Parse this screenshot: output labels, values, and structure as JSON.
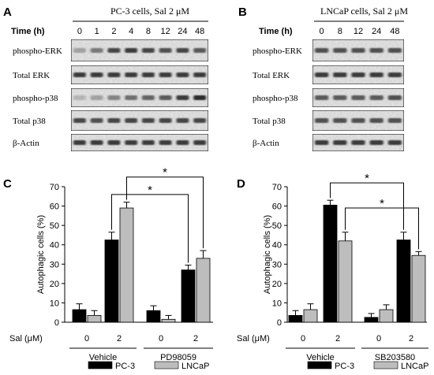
{
  "panels": {
    "A": {
      "letter": "A",
      "header": "PC-3 cells,  Sal 2 μM",
      "time_label": "Time  (h)",
      "times": [
        "0",
        "1",
        "2",
        "4",
        "8",
        "12",
        "24",
        "48"
      ],
      "blots": [
        "phospho-ERK",
        "Total ERK",
        "phospho-p38",
        "Total p38",
        "β-Actin"
      ]
    },
    "B": {
      "letter": "B",
      "header": "LNCaP cells,  Sal 2 μM",
      "time_label": "Time  (h)",
      "times": [
        "0",
        "8",
        "12",
        "24",
        "48"
      ],
      "blots": [
        "phospho-ERK",
        "Total ERK",
        "phospho-p38",
        "Total p38",
        "β-Actin"
      ]
    }
  },
  "chart_data": [
    {
      "type": "bar",
      "panel": "C",
      "ylabel": "Autophagic  cells (%)",
      "xlabel": "Sal (μM)",
      "ylim": [
        0,
        70
      ],
      "yticks": [
        0,
        10,
        20,
        30,
        40,
        50,
        60,
        70
      ],
      "categories": [
        "0",
        "2",
        "0",
        "2"
      ],
      "groups": [
        {
          "label": "Vehicle",
          "categories": [
            0,
            1
          ]
        },
        {
          "label": "PD98059",
          "categories": [
            2,
            3
          ]
        }
      ],
      "series": [
        {
          "name": "PC-3",
          "color": "#000000",
          "values": [
            6.5,
            42.5,
            6,
            27
          ],
          "errors": [
            3,
            4,
            2.5,
            2.5
          ]
        },
        {
          "name": "LNCaP",
          "color": "#bdbdbd",
          "values": [
            3.5,
            59,
            1.5,
            33
          ],
          "errors": [
            2.5,
            3,
            2,
            4
          ]
        }
      ],
      "significance": [
        "*",
        "*"
      ],
      "legend": "bottom"
    },
    {
      "type": "bar",
      "panel": "D",
      "ylabel": "Autophagic  cells (%)",
      "xlabel": "Sal (μM)",
      "ylim": [
        0,
        70
      ],
      "yticks": [
        0,
        10,
        20,
        30,
        40,
        50,
        60,
        70
      ],
      "categories": [
        "0",
        "2",
        "0",
        "2"
      ],
      "groups": [
        {
          "label": "Vehicle",
          "categories": [
            0,
            1
          ]
        },
        {
          "label": "SB203580",
          "categories": [
            2,
            3
          ]
        }
      ],
      "series": [
        {
          "name": "PC-3",
          "color": "#000000",
          "values": [
            3.5,
            60.5,
            2.5,
            42.5
          ],
          "errors": [
            2.5,
            2.5,
            2,
            4
          ]
        },
        {
          "name": "LNCaP",
          "color": "#bdbdbd",
          "values": [
            6.5,
            42,
            6.5,
            34.5
          ],
          "errors": [
            3,
            4.5,
            2.5,
            2
          ]
        }
      ],
      "significance": [
        "*",
        "*"
      ],
      "legend": "bottom"
    }
  ]
}
